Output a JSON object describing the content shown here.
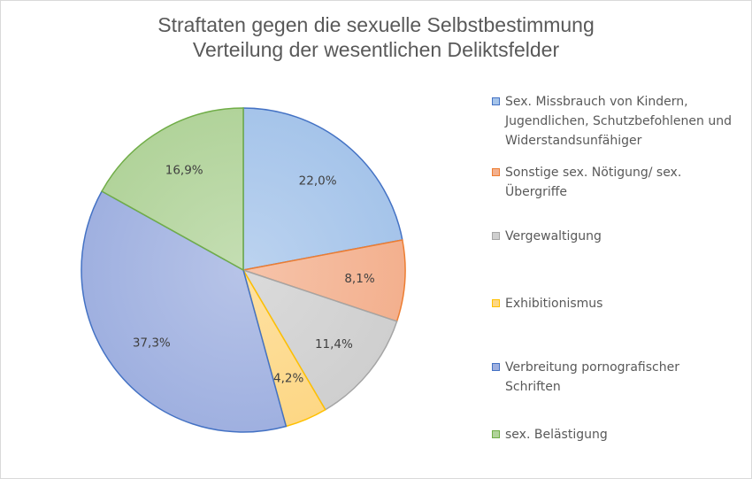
{
  "chart_data": {
    "type": "pie",
    "title": "Straftaten  gegen die sexuelle Selbstbestimmung",
    "subtitle": "Verteilung der wesentlichen Deliktsfelder",
    "slices": [
      {
        "label": "Sex. Missbrauch von Kindern,\nJugendlichen, Schutzbefohlenen und\nWiderstandsunfähiger",
        "value": 22.0,
        "display": "22,0%",
        "fill": "#a5c4ea",
        "stroke": "#4472c4"
      },
      {
        "label": "Sonstige sex. Nötigung/ sex.\nÜbergriffe",
        "value": 8.1,
        "display": "8,1%",
        "fill": "#f3b08e",
        "stroke": "#ed7d31"
      },
      {
        "label": "Vergewaltigung",
        "value": 11.4,
        "display": "11,4%",
        "fill": "#cfcfcf",
        "stroke": "#a5a5a5"
      },
      {
        "label": "Exhibitionismus",
        "value": 4.2,
        "display": "4,2%",
        "fill": "#fdd785",
        "stroke": "#ffc000"
      },
      {
        "label": "Verbreitung pornografischer\nSchriften",
        "value": 37.3,
        "display": "37,3%",
        "fill": "#9fb0e0",
        "stroke": "#4472c4"
      },
      {
        "label": "sex. Belästigung",
        "value": 16.9,
        "display": "16,9%",
        "fill": "#b1d39a",
        "stroke": "#70ad47"
      }
    ],
    "legend_position": "right"
  }
}
